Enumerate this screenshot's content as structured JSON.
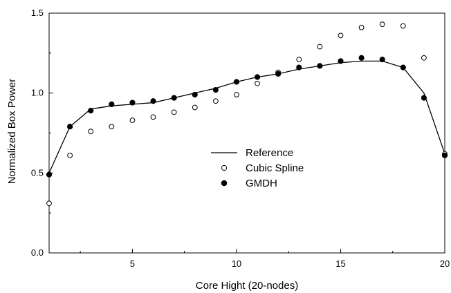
{
  "chart_data": {
    "type": "scatter",
    "title": "",
    "xlabel": "Core Hight (20-nodes)",
    "ylabel": "Normalized Box Power",
    "xlim": [
      1,
      20
    ],
    "ylim": [
      0.0,
      1.5
    ],
    "x_ticks": [
      5,
      10,
      15,
      20
    ],
    "x_tick_labels": [
      "5",
      "10",
      "15",
      "20"
    ],
    "x_minor_ticks": [
      2.5,
      7.5,
      12.5,
      17.5
    ],
    "y_ticks": [
      0.0,
      0.5,
      1.0,
      1.5
    ],
    "y_tick_labels": [
      "0.0",
      "0.5",
      "1.0",
      "1.5"
    ],
    "y_minor_ticks": [
      0.25,
      0.75,
      1.25
    ],
    "grid": false,
    "legend_position": "center",
    "x": [
      1,
      2,
      3,
      4,
      5,
      6,
      7,
      8,
      9,
      10,
      11,
      12,
      13,
      14,
      15,
      16,
      17,
      18,
      19,
      20
    ],
    "series": [
      {
        "name": "Reference",
        "style": "line",
        "color": "#000000",
        "values": [
          0.5,
          0.79,
          0.9,
          0.92,
          0.93,
          0.94,
          0.97,
          1.0,
          1.03,
          1.07,
          1.1,
          1.12,
          1.15,
          1.17,
          1.19,
          1.2,
          1.2,
          1.16,
          1.0,
          0.62
        ]
      },
      {
        "name": "Cubic Spline",
        "style": "open-circle",
        "color": "#000000",
        "values": [
          0.31,
          0.61,
          0.76,
          0.79,
          0.83,
          0.85,
          0.88,
          0.91,
          0.95,
          0.99,
          1.06,
          1.13,
          1.21,
          1.29,
          1.36,
          1.41,
          1.43,
          1.42,
          1.22,
          0.62
        ]
      },
      {
        "name": "GMDH",
        "style": "filled-circle",
        "color": "#000000",
        "values": [
          0.49,
          0.79,
          0.89,
          0.93,
          0.94,
          0.95,
          0.97,
          0.99,
          1.02,
          1.07,
          1.1,
          1.12,
          1.16,
          1.17,
          1.2,
          1.22,
          1.21,
          1.16,
          0.97,
          0.61
        ]
      }
    ]
  }
}
